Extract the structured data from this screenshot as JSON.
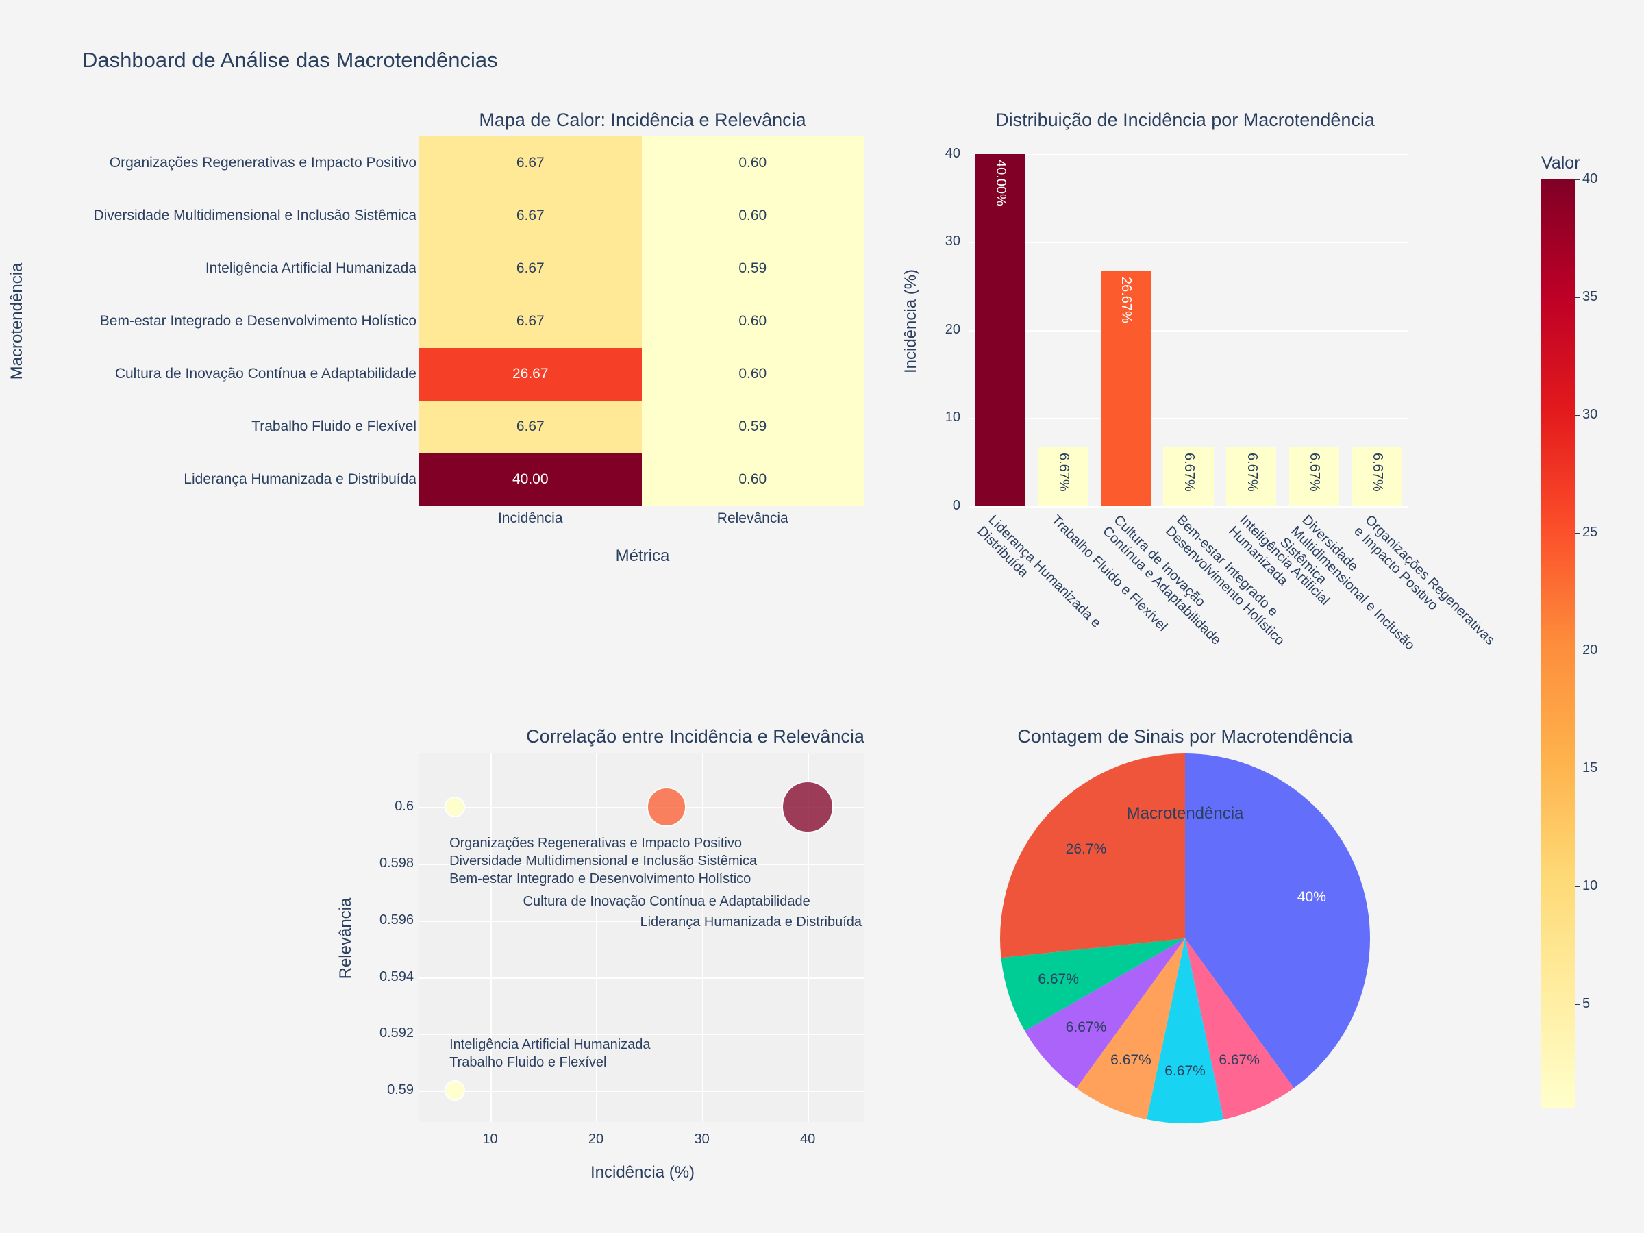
{
  "page_title": "Dashboard de Análise das Macrotendências",
  "chart_data": [
    {
      "type": "heatmap",
      "title": "Mapa de Calor: Incidência e Relevância",
      "xlabel": "Métrica",
      "ylabel": "Macrotendência",
      "x_categories": [
        "Incidência",
        "Relevância"
      ],
      "y_categories": [
        "Organizações Regenerativas e Impacto Positivo",
        "Diversidade Multidimensional e Inclusão Sistêmica",
        "Inteligência Artificial Humanizada",
        "Bem-estar Integrado e Desenvolvimento Holístico",
        "Cultura de Inovação Contínua e Adaptabilidade",
        "Trabalho Fluido e Flexível",
        "Liderança Humanizada e Distribuída"
      ],
      "z": [
        [
          6.67,
          0.6
        ],
        [
          6.67,
          0.6
        ],
        [
          6.67,
          0.59
        ],
        [
          6.67,
          0.6
        ],
        [
          26.67,
          0.6
        ],
        [
          6.67,
          0.59
        ],
        [
          40.0,
          0.6
        ]
      ],
      "colorscale": "YlOrRd",
      "zlim": [
        0.59,
        40
      ],
      "colorbar": {
        "title": "Valor",
        "ticks": [
          5,
          10,
          15,
          20,
          25,
          30,
          35,
          40
        ]
      }
    },
    {
      "type": "bar",
      "title": "Distribuição de Incidência por Macrotendência",
      "ylabel": "Incidência (%)",
      "categories": [
        "Liderança Humanizada e Distribuída",
        "Trabalho Fluido e Flexível",
        "Cultura de Inovação Contínua e Adaptabilidade",
        "Bem-estar Integrado e Desenvolvimento Holístico",
        "Inteligência Artificial Humanizada",
        "Diversidade Multidimensional e Inclusão Sistêmica",
        "Organizações Regenerativas e Impacto Positivo"
      ],
      "values": [
        40,
        6.67,
        26.67,
        6.67,
        6.67,
        6.67,
        6.67
      ],
      "data_labels": [
        "40.00%",
        "6.67%",
        "26.67%",
        "6.67%",
        "6.67%",
        "6.67%",
        "6.67%"
      ],
      "ylim": [
        0,
        42
      ],
      "yticks": [
        0,
        10,
        20,
        30,
        40
      ],
      "colorscale": "YlOrRd"
    },
    {
      "type": "scatter",
      "title": "Correlação entre Incidência e Relevância",
      "xlabel": "Incidência (%)",
      "ylabel": "Relevância",
      "xlim": [
        3.3,
        45.3
      ],
      "ylim": [
        0.5889,
        0.6019
      ],
      "xticks": [
        10,
        20,
        30,
        40
      ],
      "yticks": [
        "0.59",
        "0.592",
        "0.594",
        "0.596",
        "0.598",
        "0.6"
      ],
      "points": [
        {
          "label": "Organizações Regenerativas e Impacto Positivo",
          "x": 6.67,
          "y": 0.6
        },
        {
          "label": "Diversidade Multidimensional e Inclusão Sistêmica",
          "x": 6.67,
          "y": 0.6
        },
        {
          "label": "Bem-estar Integrado e Desenvolvimento Holístico",
          "x": 6.67,
          "y": 0.6
        },
        {
          "label": "Inteligência Artificial Humanizada",
          "x": 6.67,
          "y": 0.59
        },
        {
          "label": "Trabalho Fluido e Flexível",
          "x": 6.67,
          "y": 0.59
        },
        {
          "label": "Cultura de Inovação Contínua e Adaptabilidade",
          "x": 26.67,
          "y": 0.6
        },
        {
          "label": "Liderança Humanizada e Distribuída",
          "x": 40,
          "y": 0.6
        }
      ]
    },
    {
      "type": "pie",
      "title": "Contagem de Sinais por Macrotendência",
      "legend_title": "Macrotendência",
      "slices": [
        {
          "value": 40,
          "label": "40%",
          "color": "#636efa"
        },
        {
          "value": 6.67,
          "label": "6.67%",
          "color": "#ff6692"
        },
        {
          "value": 6.67,
          "label": "6.67%",
          "color": "#19d3f3"
        },
        {
          "value": 6.67,
          "label": "6.67%",
          "color": "#ffa15a"
        },
        {
          "value": 6.67,
          "label": "6.67%",
          "color": "#ab63fa"
        },
        {
          "value": 6.67,
          "label": "6.67%",
          "color": "#00cc96"
        },
        {
          "value": 26.67,
          "label": "26.7%",
          "color": "#ef553b"
        }
      ]
    }
  ]
}
